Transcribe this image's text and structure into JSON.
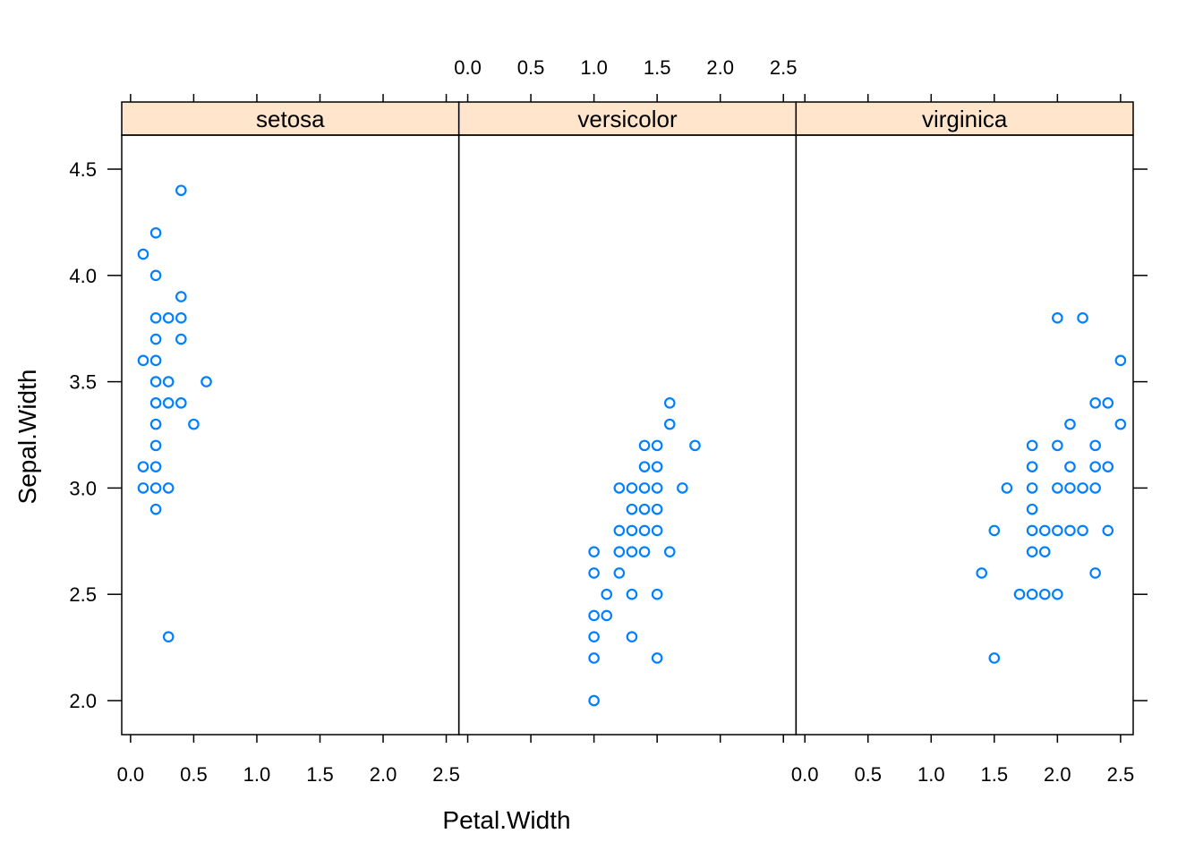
{
  "chart_data": {
    "type": "scatter",
    "layout": "lattice-panels",
    "xlabel": "Petal.Width",
    "ylabel": "Sepal.Width",
    "xlim": [
      -0.07,
      2.6
    ],
    "ylim": [
      1.84,
      4.66
    ],
    "x_ticks": [
      0.0,
      0.5,
      1.0,
      1.5,
      2.0,
      2.5
    ],
    "x_tick_labels": [
      "0.0",
      "0.5",
      "1.0",
      "1.5",
      "2.0",
      "2.5"
    ],
    "y_ticks": [
      2.0,
      2.5,
      3.0,
      3.5,
      4.0,
      4.5
    ],
    "y_tick_labels": [
      "2.0",
      "2.5",
      "3.0",
      "3.5",
      "4.0",
      "4.5"
    ],
    "point_color": "#0080ff",
    "strip_color": "#ffe5cc",
    "grid": false,
    "panels": [
      {
        "name": "setosa",
        "points": [
          [
            0.4,
            4.4
          ],
          [
            0.2,
            4.2
          ],
          [
            0.1,
            4.1
          ],
          [
            0.2,
            4.0
          ],
          [
            0.4,
            3.9
          ],
          [
            0.2,
            3.8
          ],
          [
            0.3,
            3.8
          ],
          [
            0.4,
            3.8
          ],
          [
            0.2,
            3.7
          ],
          [
            0.4,
            3.7
          ],
          [
            0.1,
            3.6
          ],
          [
            0.2,
            3.6
          ],
          [
            0.2,
            3.5
          ],
          [
            0.3,
            3.5
          ],
          [
            0.6,
            3.5
          ],
          [
            0.2,
            3.4
          ],
          [
            0.3,
            3.4
          ],
          [
            0.4,
            3.4
          ],
          [
            0.2,
            3.3
          ],
          [
            0.5,
            3.3
          ],
          [
            0.2,
            3.2
          ],
          [
            0.1,
            3.1
          ],
          [
            0.2,
            3.1
          ],
          [
            0.1,
            3.0
          ],
          [
            0.2,
            3.0
          ],
          [
            0.3,
            3.0
          ],
          [
            0.2,
            2.9
          ],
          [
            0.3,
            2.3
          ]
        ]
      },
      {
        "name": "versicolor",
        "points": [
          [
            1.6,
            3.4
          ],
          [
            1.6,
            3.3
          ],
          [
            1.4,
            3.2
          ],
          [
            1.5,
            3.2
          ],
          [
            1.8,
            3.2
          ],
          [
            1.4,
            3.1
          ],
          [
            1.5,
            3.1
          ],
          [
            1.2,
            3.0
          ],
          [
            1.3,
            3.0
          ],
          [
            1.4,
            3.0
          ],
          [
            1.5,
            3.0
          ],
          [
            1.7,
            3.0
          ],
          [
            1.3,
            2.9
          ],
          [
            1.4,
            2.9
          ],
          [
            1.5,
            2.9
          ],
          [
            1.2,
            2.8
          ],
          [
            1.3,
            2.8
          ],
          [
            1.4,
            2.8
          ],
          [
            1.5,
            2.8
          ],
          [
            1.0,
            2.7
          ],
          [
            1.2,
            2.7
          ],
          [
            1.3,
            2.7
          ],
          [
            1.4,
            2.7
          ],
          [
            1.6,
            2.7
          ],
          [
            1.0,
            2.6
          ],
          [
            1.2,
            2.6
          ],
          [
            1.1,
            2.5
          ],
          [
            1.3,
            2.5
          ],
          [
            1.5,
            2.5
          ],
          [
            1.0,
            2.4
          ],
          [
            1.1,
            2.4
          ],
          [
            1.0,
            2.3
          ],
          [
            1.3,
            2.3
          ],
          [
            1.0,
            2.2
          ],
          [
            1.5,
            2.2
          ],
          [
            1.0,
            2.0
          ]
        ]
      },
      {
        "name": "virginica",
        "points": [
          [
            2.0,
            3.8
          ],
          [
            2.2,
            3.8
          ],
          [
            2.5,
            3.6
          ],
          [
            2.3,
            3.4
          ],
          [
            2.4,
            3.4
          ],
          [
            2.1,
            3.3
          ],
          [
            2.5,
            3.3
          ],
          [
            1.8,
            3.2
          ],
          [
            2.0,
            3.2
          ],
          [
            2.3,
            3.2
          ],
          [
            1.8,
            3.1
          ],
          [
            2.1,
            3.1
          ],
          [
            2.3,
            3.1
          ],
          [
            2.4,
            3.1
          ],
          [
            1.6,
            3.0
          ],
          [
            1.8,
            3.0
          ],
          [
            2.0,
            3.0
          ],
          [
            2.1,
            3.0
          ],
          [
            2.2,
            3.0
          ],
          [
            2.3,
            3.0
          ],
          [
            1.8,
            2.9
          ],
          [
            1.5,
            2.8
          ],
          [
            1.8,
            2.8
          ],
          [
            1.9,
            2.8
          ],
          [
            2.0,
            2.8
          ],
          [
            2.1,
            2.8
          ],
          [
            2.2,
            2.8
          ],
          [
            2.4,
            2.8
          ],
          [
            1.8,
            2.7
          ],
          [
            1.9,
            2.7
          ],
          [
            1.4,
            2.6
          ],
          [
            2.3,
            2.6
          ],
          [
            1.7,
            2.5
          ],
          [
            1.8,
            2.5
          ],
          [
            1.9,
            2.5
          ],
          [
            2.0,
            2.5
          ],
          [
            1.5,
            2.2
          ]
        ]
      }
    ]
  }
}
